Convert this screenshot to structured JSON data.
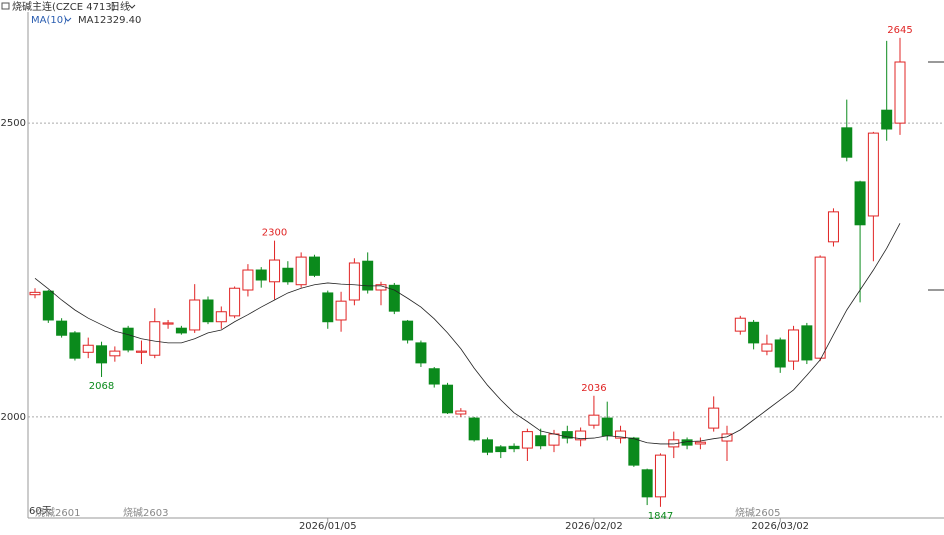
{
  "chart_data": {
    "type": "candlestick",
    "title": "烧碱主连(CZCE 4713)",
    "period": "日线",
    "ma_label": "MA(10)",
    "ma": {
      "name": "MA1",
      "value_label": "2329.40",
      "color": "#222222",
      "values": [
        2236,
        2218,
        2199,
        2182,
        2168,
        2157,
        2146,
        2140,
        2133,
        2129,
        2126,
        2126,
        2133,
        2143,
        2148,
        2162,
        2174,
        2187,
        2199,
        2211,
        2219,
        2225,
        2228,
        2226,
        2225,
        2223,
        2223,
        2216,
        2202,
        2187,
        2167,
        2143,
        2116,
        2083,
        2054,
        2029,
        2007,
        1992,
        1976,
        1971,
        1966,
        1963,
        1964,
        1968,
        1966,
        1963,
        1956,
        1954,
        1954,
        1958,
        1959,
        1963,
        1966,
        1978,
        1995,
        2012,
        2029,
        2046,
        2071,
        2097,
        2140,
        2182,
        2216,
        2250,
        2287,
        2329.4
      ]
    },
    "categories": [
      null,
      null,
      null,
      null,
      null,
      null,
      null,
      null,
      null,
      null,
      null,
      null,
      null,
      null,
      null,
      null,
      null,
      null,
      null,
      null,
      null,
      null,
      "2026/01/05",
      null,
      null,
      null,
      null,
      null,
      null,
      null,
      null,
      null,
      null,
      null,
      null,
      null,
      null,
      null,
      null,
      null,
      null,
      null,
      "2026/02/02",
      null,
      null,
      null,
      null,
      null,
      null,
      null,
      null,
      null,
      null,
      null,
      null,
      null,
      "2026/03/02",
      null,
      null,
      null,
      null,
      null,
      null,
      null,
      null,
      null
    ],
    "open": [
      2208,
      2214,
      2163,
      2143,
      2110,
      2121,
      2104,
      2151,
      2110,
      2105,
      2158,
      2151,
      2148,
      2199,
      2162,
      2172,
      2216,
      2250,
      2230,
      2253,
      2225,
      2272,
      2211,
      2165,
      2199,
      2265,
      2216,
      2224,
      2163,
      2126,
      2082,
      2054,
      2005,
      1998,
      1961,
      1949,
      1950,
      1947,
      1968,
      1952,
      1975,
      1961,
      1986,
      1998,
      1964,
      1964,
      1910,
      1864,
      1949,
      1961,
      1954,
      1981,
      1959,
      2146,
      2161,
      2112,
      2131,
      2095,
      2155,
      2100,
      2298,
      2492,
      2400,
      2342,
      2522,
      2500
    ],
    "high": [
      2219,
      2216,
      2168,
      2146,
      2135,
      2128,
      2120,
      2155,
      2130,
      2185,
      2165,
      2155,
      2226,
      2205,
      2188,
      2222,
      2260,
      2255,
      2300,
      2265,
      2280,
      2276,
      2215,
      2213,
      2270,
      2280,
      2230,
      2228,
      2165,
      2130,
      2085,
      2058,
      2015,
      2000,
      1965,
      1952,
      1955,
      1980,
      1980,
      1978,
      1985,
      1982,
      2036,
      2026,
      1985,
      1966,
      1912,
      1938,
      1975,
      1965,
      1965,
      2035,
      1985,
      2172,
      2165,
      2140,
      2135,
      2155,
      2160,
      2275,
      2355,
      2540,
      2402,
      2485,
      2640,
      2645
    ],
    "low": [
      2202,
      2160,
      2135,
      2096,
      2100,
      2068,
      2094,
      2110,
      2090,
      2100,
      2150,
      2140,
      2143,
      2158,
      2150,
      2168,
      2205,
      2220,
      2200,
      2225,
      2220,
      2238,
      2150,
      2145,
      2190,
      2210,
      2190,
      2175,
      2125,
      2085,
      2050,
      2005,
      2000,
      1958,
      1935,
      1930,
      1940,
      1925,
      1945,
      1940,
      1955,
      1950,
      1980,
      1960,
      1955,
      1915,
      1850,
      1847,
      1930,
      1945,
      1945,
      1975,
      1925,
      2140,
      2115,
      2105,
      2075,
      2080,
      2090,
      2095,
      2290,
      2435,
      2195,
      2265,
      2470,
      2480
    ],
    "close": [
      2212,
      2165,
      2139,
      2100,
      2122,
      2092,
      2112,
      2114,
      2112,
      2162,
      2160,
      2143,
      2199,
      2162,
      2179,
      2219,
      2250,
      2233,
      2267,
      2230,
      2272,
      2241,
      2162,
      2197,
      2262,
      2216,
      2225,
      2180,
      2131,
      2092,
      2056,
      2007,
      2010,
      1961,
      1940,
      1941,
      1946,
      1975,
      1951,
      1971,
      1964,
      1976,
      2003,
      1968,
      1976,
      1918,
      1864,
      1935,
      1961,
      1952,
      1957,
      2015,
      1971,
      2168,
      2126,
      2124,
      2085,
      2148,
      2097,
      2272,
      2349,
      2442,
      2327,
      2483,
      2490,
      2604
    ],
    "up_color": "#e02424",
    "down_color": "#0b8a1c",
    "ylim": [
      1828,
      2684
    ],
    "yticks": [
      2000,
      2500
    ],
    "grid": true,
    "annotations": [
      "60天",
      "烧碱2601",
      "烧碱2603",
      "烧碱2605"
    ]
  }
}
